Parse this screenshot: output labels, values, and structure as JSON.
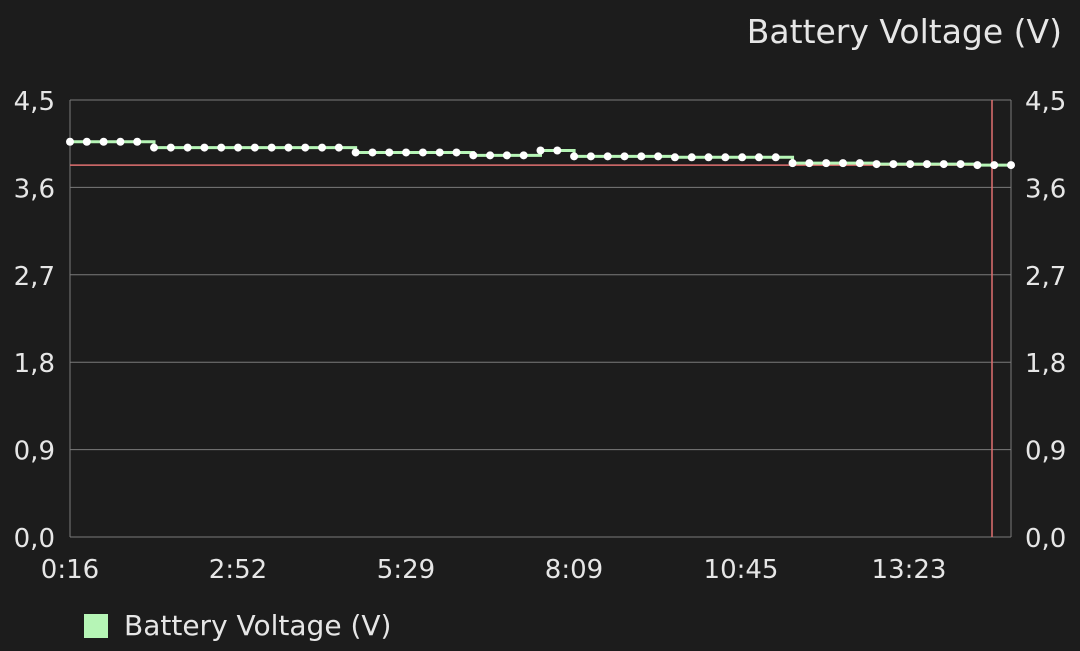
{
  "chart_data": {
    "type": "line",
    "title": "Battery Voltage (V)",
    "xlabel": "",
    "ylabel": "",
    "y_ticks": [
      "0,0",
      "0,9",
      "1,8",
      "2,7",
      "3,6",
      "4,5"
    ],
    "ylim": [
      0,
      4.5
    ],
    "x_ticks": [
      "0:16",
      "2:52",
      "5:29",
      "8:09",
      "10:45",
      "13:23"
    ],
    "limit_line": 3.83,
    "grid": true,
    "legend_position": "bottom-left",
    "series": [
      {
        "name": "Battery Voltage (V)",
        "color": "#b6f5b6",
        "values": [
          4.07,
          4.07,
          4.07,
          4.07,
          4.07,
          4.01,
          4.01,
          4.01,
          4.01,
          4.01,
          4.01,
          4.01,
          4.01,
          4.01,
          4.01,
          4.01,
          4.01,
          3.96,
          3.96,
          3.96,
          3.96,
          3.96,
          3.96,
          3.96,
          3.93,
          3.93,
          3.93,
          3.93,
          3.98,
          3.98,
          3.92,
          3.92,
          3.92,
          3.92,
          3.92,
          3.92,
          3.91,
          3.91,
          3.91,
          3.91,
          3.91,
          3.91,
          3.91,
          3.85,
          3.85,
          3.85,
          3.85,
          3.85,
          3.84,
          3.84,
          3.84,
          3.84,
          3.84,
          3.84,
          3.83,
          3.83,
          3.83
        ]
      }
    ]
  }
}
